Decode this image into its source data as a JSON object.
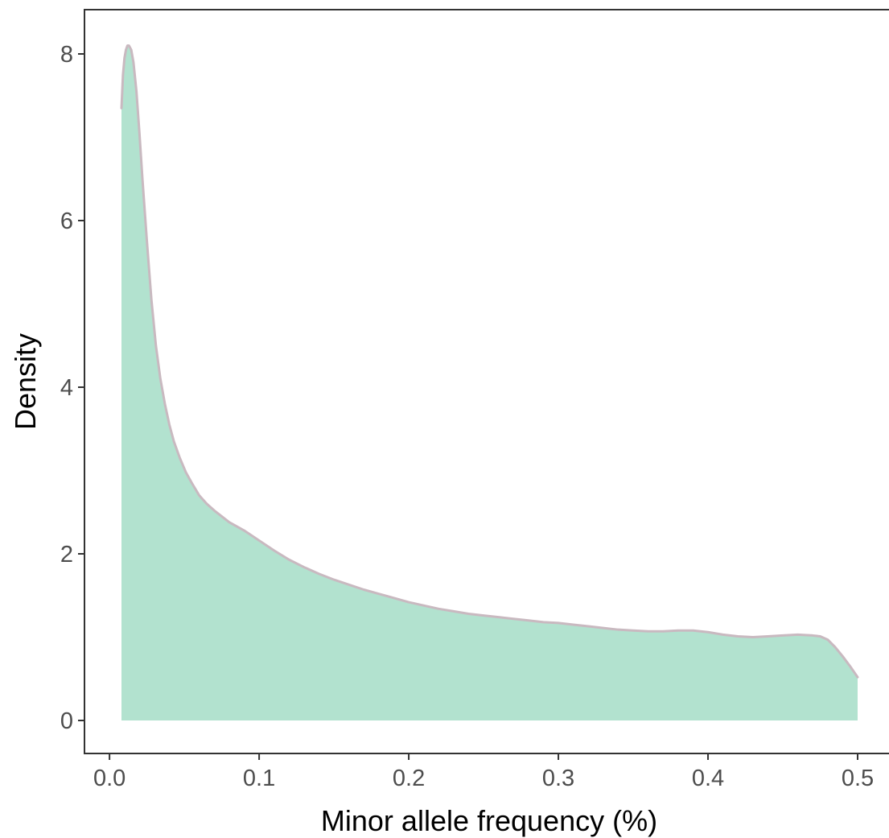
{
  "chart_data": {
    "type": "area",
    "title": "",
    "xlabel": "Minor allele frequency (%)",
    "ylabel": "Density",
    "xlim": [
      -0.016,
      0.52
    ],
    "ylim": [
      -0.4,
      8.55
    ],
    "x_ticks": [
      0.0,
      0.1,
      0.2,
      0.3,
      0.4,
      0.5
    ],
    "x_tick_labels": [
      "0.0",
      "0.1",
      "0.2",
      "0.3",
      "0.4",
      "0.5"
    ],
    "y_ticks": [
      0,
      2,
      4,
      6,
      8
    ],
    "y_tick_labels": [
      "0",
      "2",
      "4",
      "6",
      "8"
    ],
    "grid": false,
    "legend": "none",
    "fill_color": "#b2e2cf",
    "line_color": "#c9b9c0",
    "series": [
      {
        "x": [
          0.008,
          0.0085,
          0.009,
          0.01,
          0.011,
          0.012,
          0.013,
          0.0145,
          0.016,
          0.018,
          0.02,
          0.022,
          0.025,
          0.028,
          0.031,
          0.034,
          0.037,
          0.04,
          0.043,
          0.047,
          0.051,
          0.055,
          0.06,
          0.065,
          0.07,
          0.075,
          0.08,
          0.09,
          0.1,
          0.11,
          0.12,
          0.13,
          0.14,
          0.15,
          0.16,
          0.17,
          0.18,
          0.19,
          0.2,
          0.21,
          0.22,
          0.23,
          0.24,
          0.25,
          0.26,
          0.27,
          0.28,
          0.29,
          0.3,
          0.31,
          0.32,
          0.33,
          0.34,
          0.35,
          0.36,
          0.37,
          0.38,
          0.39,
          0.4,
          0.41,
          0.42,
          0.43,
          0.44,
          0.45,
          0.46,
          0.47,
          0.475,
          0.48,
          0.485,
          0.49,
          0.495,
          0.5
        ],
        "y": [
          7.35,
          7.55,
          7.75,
          7.95,
          8.05,
          8.1,
          8.1,
          8.05,
          7.9,
          7.55,
          7.05,
          6.5,
          5.75,
          5.05,
          4.5,
          4.1,
          3.8,
          3.55,
          3.35,
          3.15,
          2.98,
          2.85,
          2.7,
          2.6,
          2.52,
          2.45,
          2.38,
          2.28,
          2.16,
          2.04,
          1.93,
          1.84,
          1.76,
          1.69,
          1.63,
          1.57,
          1.52,
          1.47,
          1.42,
          1.38,
          1.34,
          1.31,
          1.28,
          1.26,
          1.24,
          1.22,
          1.2,
          1.18,
          1.17,
          1.15,
          1.13,
          1.11,
          1.09,
          1.08,
          1.07,
          1.07,
          1.08,
          1.08,
          1.06,
          1.03,
          1.01,
          1.0,
          1.01,
          1.02,
          1.03,
          1.02,
          1.01,
          0.97,
          0.88,
          0.77,
          0.65,
          0.52
        ]
      }
    ]
  }
}
